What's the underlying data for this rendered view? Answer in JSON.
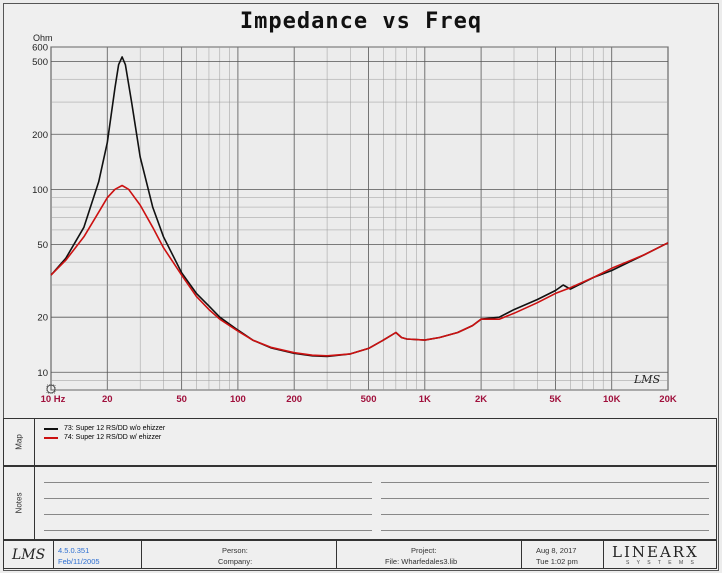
{
  "chart_data": {
    "type": "line",
    "title": "Impedance vs Freq",
    "ylabel": "Ohm",
    "x_scale": "log",
    "y_scale": "log",
    "xlim": [
      10,
      20000
    ],
    "ylim": [
      8,
      600
    ],
    "x_ticks": [
      "10 Hz",
      "20",
      "50",
      "100",
      "200",
      "500",
      "1K",
      "2K",
      "5K",
      "10K",
      "20K"
    ],
    "x_tick_values": [
      10,
      20,
      50,
      100,
      200,
      500,
      1000,
      2000,
      5000,
      10000,
      20000
    ],
    "y_ticks": [
      "600",
      "500",
      "200",
      "100",
      "50",
      "20",
      "10"
    ],
    "y_tick_values": [
      600,
      500,
      200,
      100,
      50,
      20,
      10
    ],
    "grid": true,
    "watermark": "LMS",
    "series": [
      {
        "name": "73: Super 12 RS/DD  w/o ehizzer",
        "color": "#111111",
        "points": [
          [
            10,
            34
          ],
          [
            12,
            42
          ],
          [
            15,
            62
          ],
          [
            18,
            110
          ],
          [
            20,
            180
          ],
          [
            22,
            360
          ],
          [
            23,
            480
          ],
          [
            24,
            530
          ],
          [
            25,
            480
          ],
          [
            27,
            300
          ],
          [
            30,
            150
          ],
          [
            35,
            80
          ],
          [
            40,
            55
          ],
          [
            50,
            35
          ],
          [
            60,
            27
          ],
          [
            70,
            23
          ],
          [
            80,
            20
          ],
          [
            100,
            17
          ],
          [
            120,
            15
          ],
          [
            150,
            13.6
          ],
          [
            200,
            12.7
          ],
          [
            250,
            12.3
          ],
          [
            300,
            12.2
          ],
          [
            400,
            12.6
          ],
          [
            500,
            13.5
          ],
          [
            600,
            15
          ],
          [
            700,
            16.5
          ],
          [
            750,
            15.5
          ],
          [
            800,
            15.2
          ],
          [
            1000,
            15
          ],
          [
            1200,
            15.5
          ],
          [
            1500,
            16.5
          ],
          [
            1800,
            18
          ],
          [
            2000,
            19.5
          ],
          [
            2500,
            20
          ],
          [
            3000,
            22
          ],
          [
            4000,
            25
          ],
          [
            5000,
            28
          ],
          [
            5500,
            30
          ],
          [
            6000,
            28.5
          ],
          [
            8000,
            33
          ],
          [
            10000,
            36
          ],
          [
            15000,
            44
          ],
          [
            20000,
            51
          ]
        ]
      },
      {
        "name": "74: Super 12 RS/DD  w/ ehizzer",
        "color": "#cc1111",
        "points": [
          [
            10,
            34
          ],
          [
            12,
            41
          ],
          [
            15,
            55
          ],
          [
            18,
            75
          ],
          [
            20,
            90
          ],
          [
            22,
            100
          ],
          [
            24,
            105
          ],
          [
            26,
            100
          ],
          [
            30,
            82
          ],
          [
            35,
            62
          ],
          [
            40,
            48
          ],
          [
            50,
            34
          ],
          [
            60,
            26
          ],
          [
            70,
            22
          ],
          [
            80,
            19.5
          ],
          [
            100,
            16.8
          ],
          [
            120,
            15
          ],
          [
            150,
            13.7
          ],
          [
            200,
            12.8
          ],
          [
            250,
            12.4
          ],
          [
            300,
            12.3
          ],
          [
            400,
            12.6
          ],
          [
            500,
            13.5
          ],
          [
            600,
            15
          ],
          [
            700,
            16.5
          ],
          [
            750,
            15.5
          ],
          [
            800,
            15.2
          ],
          [
            1000,
            15
          ],
          [
            1200,
            15.5
          ],
          [
            1500,
            16.5
          ],
          [
            1800,
            18
          ],
          [
            2000,
            19.5
          ],
          [
            2500,
            19.5
          ],
          [
            3000,
            21
          ],
          [
            4000,
            24
          ],
          [
            5000,
            27
          ],
          [
            6000,
            29
          ],
          [
            8000,
            33
          ],
          [
            10000,
            37
          ],
          [
            15000,
            44
          ],
          [
            20000,
            51
          ]
        ]
      }
    ]
  },
  "map": {
    "label": "Map",
    "entries": [
      {
        "text": "73: Super 12 RS/DD  w/o ehizzer",
        "color": "#111111"
      },
      {
        "text": "74: Super 12 RS/DD  w/ ehizzer",
        "color": "#cc1111"
      }
    ]
  },
  "notes": {
    "label": "Notes"
  },
  "footer": {
    "version": "4.5.0.351",
    "version_date": "Feb/11/2005",
    "person_label": "Person:",
    "company_label": "Company:",
    "project_label": "Project:",
    "file_label": "File: Wharfedales3.lib",
    "date": "Aug  8, 2017",
    "time": "Tue  1:02 pm",
    "brand": "LINEARX",
    "brand_sub": "S Y S T E M S"
  }
}
